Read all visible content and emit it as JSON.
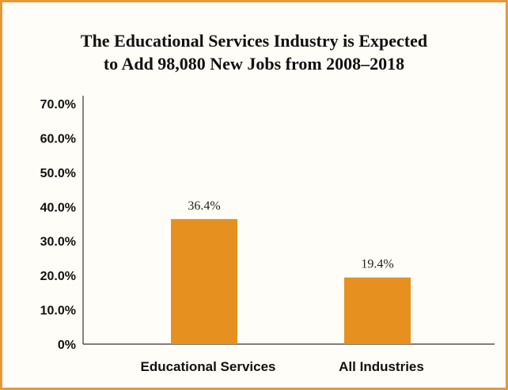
{
  "chart_data": {
    "type": "bar",
    "title_lines": [
      "The Educational Services Industry is Expected",
      "to Add 98,080 New Jobs from 2008–2018"
    ],
    "categories": [
      "Educational Services",
      "All Industries"
    ],
    "values": [
      36.4,
      19.4
    ],
    "data_labels": [
      "36.4%",
      "19.4%"
    ],
    "y_tick_values": [
      0,
      10,
      20,
      30,
      40,
      50,
      60,
      70
    ],
    "y_tick_labels": [
      "0%",
      "10.0%",
      "20.0%",
      "30.0%",
      "40.0%",
      "50.0%",
      "60.0%",
      "70.0%"
    ],
    "ylim": [
      0,
      70
    ],
    "grid": false,
    "legend": "none",
    "colors": {
      "bar": "#e6911f",
      "border": "#e39a3a",
      "axis": "#333333"
    }
  }
}
